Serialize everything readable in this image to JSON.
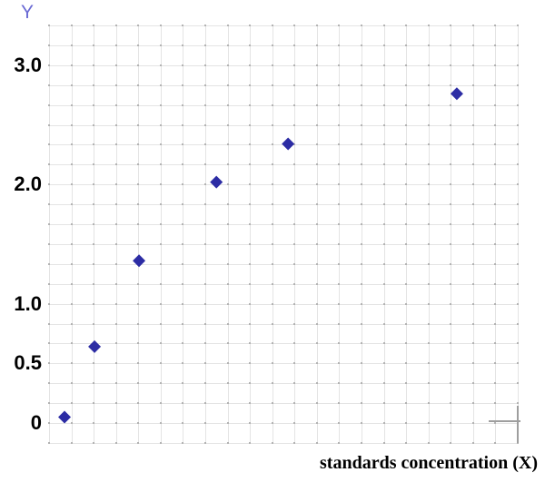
{
  "chart": {
    "y_axis_title": "Y",
    "x_axis_label": "standards concentration (X)"
  },
  "colors": {
    "background": "#ffffff",
    "grid_line": "#e4e4e4",
    "grid_dot": "#b3b3b3",
    "marker": "#2c2ca4",
    "y_axis_title": "#6a6ad4",
    "tick_label": "#000000",
    "corner_mark": "#9e9e9e"
  },
  "chart_data": {
    "type": "scatter",
    "title": "",
    "xlabel": "standards concentration (X)",
    "ylabel": "Y",
    "legend": "none",
    "grid": {
      "columns": 21,
      "rows": 21,
      "style": "light solid lines with small darker square dots at intersections"
    },
    "ylim": [
      -0.167,
      3.333
    ],
    "x_tick_labels": [],
    "y_ticks": [
      {
        "label": "0",
        "value": 0
      },
      {
        "label": "0.5",
        "value": 0.5
      },
      {
        "label": "1.0",
        "value": 1.0
      },
      {
        "label": "2.0",
        "value": 2.0
      },
      {
        "label": "3.0",
        "value": 3.0
      }
    ],
    "series": [
      {
        "name": "standards",
        "marker": "diamond",
        "marker_size_px": 14,
        "x_note": "x axis has no numeric tick labels; x_frac is fractional position along the axis (0 = left edge, 1 = right edge)",
        "points": [
          {
            "x_frac": 0.033,
            "y": 0.05
          },
          {
            "x_frac": 0.097,
            "y": 0.64
          },
          {
            "x_frac": 0.192,
            "y": 1.36
          },
          {
            "x_frac": 0.357,
            "y": 2.02
          },
          {
            "x_frac": 0.51,
            "y": 2.34
          },
          {
            "x_frac": 0.87,
            "y": 2.76
          }
        ]
      }
    ]
  }
}
